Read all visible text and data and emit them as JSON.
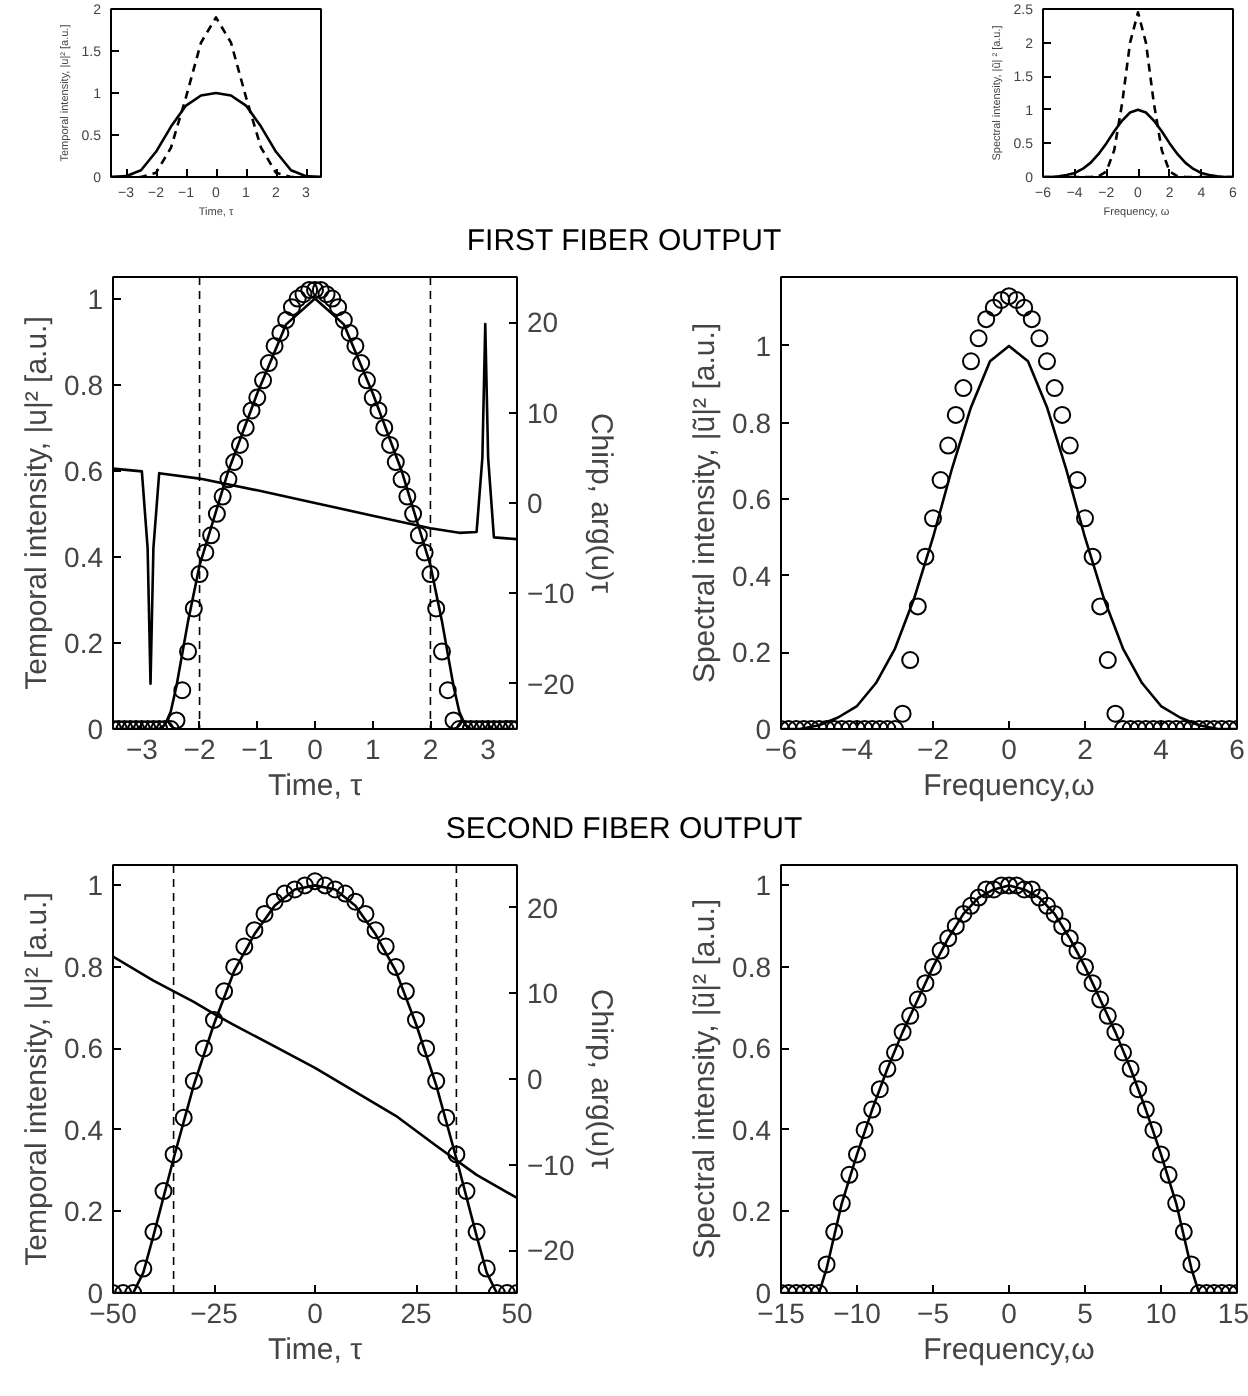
{
  "chart_data": [
    {
      "type": "line",
      "xlabel": "Time, τ",
      "ylabel": "Temporal intensity, |u|² [a.u.]",
      "xlim": [
        -3.5,
        3.5
      ],
      "xticks": [
        -3,
        -2,
        -1,
        0,
        1,
        2,
        3
      ],
      "ylim": [
        0,
        2
      ],
      "yticks": [
        0,
        0.5,
        1,
        1.5,
        2
      ],
      "grid": false,
      "series": [
        {
          "color": "#000000",
          "line_style": "solid",
          "x": [
            -3.5,
            -3,
            -2.5,
            -2,
            -1.5,
            -1,
            -0.5,
            0,
            0.5,
            1,
            1.5,
            2,
            2.5,
            3,
            3.5
          ],
          "values": [
            0,
            0.01,
            0.08,
            0.3,
            0.6,
            0.85,
            0.97,
            1,
            0.97,
            0.85,
            0.6,
            0.3,
            0.08,
            0.01,
            0
          ]
        },
        {
          "color": "#000000",
          "line_style": "dashed",
          "x": [
            -3.5,
            -2.5,
            -2,
            -1.5,
            -1,
            -0.5,
            0,
            0.5,
            1,
            1.5,
            2,
            2.5,
            3.5
          ],
          "values": [
            0,
            0,
            0.05,
            0.35,
            0.95,
            1.6,
            1.9,
            1.6,
            0.95,
            0.35,
            0.05,
            0,
            0
          ]
        }
      ]
    },
    {
      "type": "line",
      "xlabel": "Frequency,  ω",
      "ylabel": "Spectral intensity, |ũ| ² [a.u.]",
      "xlim": [
        -6,
        6
      ],
      "xticks": [
        -6,
        -4,
        -2,
        0,
        2,
        4,
        6
      ],
      "ylim": [
        0,
        2.5
      ],
      "yticks": [
        0,
        0.5,
        1,
        1.5,
        2,
        2.5
      ],
      "grid": false,
      "series": [
        {
          "color": "#000000",
          "line_style": "solid",
          "x": [
            -6,
            -5.5,
            -5,
            -4.5,
            -4,
            -3.5,
            -3,
            -2.5,
            -2,
            -1.5,
            -1,
            -0.5,
            0,
            0.5,
            1,
            1.5,
            2,
            2.5,
            3,
            3.5,
            4,
            4.5,
            5,
            5.5,
            6
          ],
          "values": [
            0,
            0,
            0.01,
            0.03,
            0.06,
            0.12,
            0.21,
            0.34,
            0.5,
            0.68,
            0.84,
            0.96,
            1,
            0.96,
            0.84,
            0.68,
            0.5,
            0.34,
            0.21,
            0.12,
            0.06,
            0.03,
            0.01,
            0,
            0
          ]
        },
        {
          "color": "#000000",
          "line_style": "dashed",
          "x": [
            -6,
            -3,
            -2.5,
            -2,
            -1.5,
            -1,
            -0.5,
            0,
            0.5,
            1,
            1.5,
            2,
            2.5,
            3,
            6
          ],
          "values": [
            0,
            0,
            0.01,
            0.08,
            0.4,
            1.1,
            2.0,
            2.45,
            2.0,
            1.1,
            0.4,
            0.08,
            0.01,
            0,
            0
          ]
        }
      ]
    },
    {
      "type": "line",
      "title": "FIRST FIBER OUTPUT",
      "xlabel": "Time, τ",
      "ylabel": "Temporal intensity, |u|² [a.u.]",
      "y2label": "Chirp, arg(u)τ",
      "xlim": [
        -3.5,
        3.5
      ],
      "xticks": [
        -3,
        -2,
        -1,
        0,
        1,
        2,
        3
      ],
      "ylim": [
        0,
        1.05
      ],
      "yticks": [
        0,
        0.2,
        0.4,
        0.6,
        0.8,
        1
      ],
      "y2lim": [
        -25,
        25
      ],
      "y2ticks": [
        -20,
        -10,
        0,
        10,
        20
      ],
      "grid": false,
      "ref_lines": [
        {
          "axis": "x",
          "value": -2,
          "color": "#000000",
          "line_style": "dashed"
        },
        {
          "axis": "x",
          "value": 2,
          "color": "#000000",
          "line_style": "dashed"
        }
      ],
      "series": [
        {
          "type": "scatter",
          "marker": "circle",
          "color": "#000000",
          "x": [
            -3.5,
            -3.4,
            -3.3,
            -3.2,
            -3.1,
            -3.0,
            -2.9,
            -2.8,
            -2.7,
            -2.6,
            -2.5,
            -2.4,
            -2.3,
            -2.2,
            -2.1,
            -2.0,
            -1.9,
            -1.8,
            -1.7,
            -1.6,
            -1.5,
            -1.4,
            -1.3,
            -1.2,
            -1.1,
            -1.0,
            -0.9,
            -0.8,
            -0.7,
            -0.6,
            -0.5,
            -0.4,
            -0.3,
            -0.2,
            -0.1,
            0,
            0.1,
            0.2,
            0.3,
            0.4,
            0.5,
            0.6,
            0.7,
            0.8,
            0.9,
            1.0,
            1.1,
            1.2,
            1.3,
            1.4,
            1.5,
            1.6,
            1.7,
            1.8,
            1.9,
            2.0,
            2.1,
            2.2,
            2.3,
            2.4,
            2.5,
            2.6,
            2.7,
            2.8,
            2.9,
            3.0,
            3.1,
            3.2,
            3.3,
            3.4,
            3.5
          ],
          "values": [
            0,
            0,
            0,
            0,
            0,
            0,
            0,
            0,
            0,
            0,
            0,
            0.02,
            0.09,
            0.18,
            0.28,
            0.36,
            0.41,
            0.45,
            0.5,
            0.54,
            0.58,
            0.62,
            0.66,
            0.7,
            0.74,
            0.77,
            0.81,
            0.85,
            0.89,
            0.92,
            0.95,
            0.98,
            1.0,
            1.01,
            1.02,
            1.02,
            1.02,
            1.01,
            1.0,
            0.98,
            0.95,
            0.92,
            0.89,
            0.85,
            0.81,
            0.77,
            0.74,
            0.7,
            0.66,
            0.62,
            0.58,
            0.54,
            0.5,
            0.45,
            0.41,
            0.36,
            0.28,
            0.18,
            0.09,
            0.02,
            0,
            0,
            0,
            0,
            0,
            0,
            0,
            0,
            0,
            0,
            0
          ]
        },
        {
          "color": "#000000",
          "line_style": "solid",
          "x": [
            -3.5,
            -2.7,
            -2.6,
            -2.5,
            -2.4,
            -2.2,
            -2,
            -1.5,
            -1,
            -0.5,
            0,
            0.5,
            1,
            1.5,
            2,
            2.2,
            2.4,
            2.5,
            2.6,
            2.7,
            3.5
          ],
          "values": [
            0,
            0,
            0.01,
            0.04,
            0.1,
            0.25,
            0.38,
            0.6,
            0.78,
            0.94,
            1,
            0.94,
            0.78,
            0.6,
            0.38,
            0.25,
            0.1,
            0.04,
            0.01,
            0,
            0
          ]
        },
        {
          "axis": "y2",
          "color": "#000000",
          "line_style": "solid",
          "x": [
            -3.5,
            -3.0,
            -2.9,
            -2.85,
            -2.8,
            -2.7,
            -2,
            -1,
            0,
            1,
            2,
            2.5,
            2.8,
            2.9,
            2.95,
            3.0,
            3.1,
            3.5
          ],
          "values": [
            3.8,
            3.5,
            -5,
            -20,
            -5,
            3.3,
            2.7,
            1.4,
            0,
            -1.4,
            -2.8,
            -3.3,
            -3.2,
            5,
            19.8,
            5,
            -3.8,
            -4
          ]
        }
      ]
    },
    {
      "type": "line",
      "xlabel": "Frequency,ω",
      "ylabel": "Spectral intensity, |ũ|² [a.u.]",
      "xlim": [
        -6,
        6
      ],
      "xticks": [
        -6,
        -4,
        -2,
        0,
        2,
        4,
        6
      ],
      "ylim": [
        0,
        1.18
      ],
      "yticks": [
        0,
        0.2,
        0.4,
        0.6,
        0.8,
        1
      ],
      "grid": false,
      "series": [
        {
          "type": "scatter",
          "marker": "circle",
          "color": "#000000",
          "x": [
            -6,
            -5.8,
            -5.6,
            -5.4,
            -5.2,
            -5,
            -4.8,
            -4.6,
            -4.4,
            -4.2,
            -4,
            -3.8,
            -3.6,
            -3.4,
            -3.2,
            -3,
            -2.8,
            -2.6,
            -2.4,
            -2.2,
            -2,
            -1.8,
            -1.6,
            -1.4,
            -1.2,
            -1,
            -0.8,
            -0.6,
            -0.4,
            -0.2,
            0,
            0.2,
            0.4,
            0.6,
            0.8,
            1,
            1.2,
            1.4,
            1.6,
            1.8,
            2,
            2.2,
            2.4,
            2.6,
            2.8,
            3,
            3.2,
            3.4,
            3.6,
            3.8,
            4,
            4.2,
            4.4,
            4.6,
            4.8,
            5,
            5.2,
            5.4,
            5.6,
            5.8,
            6
          ],
          "values": [
            0,
            0,
            0,
            0,
            0,
            0,
            0,
            0,
            0,
            0,
            0,
            0,
            0,
            0,
            0,
            0,
            0.04,
            0.18,
            0.32,
            0.45,
            0.55,
            0.65,
            0.74,
            0.82,
            0.89,
            0.96,
            1.02,
            1.07,
            1.1,
            1.12,
            1.13,
            1.12,
            1.1,
            1.07,
            1.02,
            0.96,
            0.89,
            0.82,
            0.74,
            0.65,
            0.55,
            0.45,
            0.32,
            0.18,
            0.04,
            0,
            0,
            0,
            0,
            0,
            0,
            0,
            0,
            0,
            0,
            0,
            0,
            0,
            0,
            0,
            0
          ]
        },
        {
          "color": "#000000",
          "line_style": "solid",
          "x": [
            -6,
            -5.5,
            -5,
            -4.5,
            -4,
            -3.5,
            -3,
            -2.5,
            -2,
            -1.5,
            -1,
            -0.5,
            0,
            0.5,
            1,
            1.5,
            2,
            2.5,
            3,
            3.5,
            4,
            4.5,
            5,
            5.5,
            6
          ],
          "values": [
            0,
            0,
            0.01,
            0.03,
            0.06,
            0.12,
            0.21,
            0.34,
            0.5,
            0.68,
            0.84,
            0.96,
            1,
            0.96,
            0.84,
            0.68,
            0.5,
            0.34,
            0.21,
            0.12,
            0.06,
            0.03,
            0.01,
            0,
            0
          ]
        }
      ]
    },
    {
      "type": "line",
      "title": "SECOND FIBER OUTPUT",
      "xlabel": "Time, τ",
      "ylabel": "Temporal intensity, |u|² [a.u.]",
      "y2label": "Chirp, arg(u)τ",
      "xlim": [
        -50,
        50
      ],
      "xticks": [
        -50,
        -25,
        0,
        25,
        50
      ],
      "ylim": [
        0,
        1.05
      ],
      "yticks": [
        0,
        0.2,
        0.4,
        0.6,
        0.8,
        1
      ],
      "y2lim": [
        -25,
        25
      ],
      "y2ticks": [
        -20,
        -10,
        0,
        10,
        20
      ],
      "grid": false,
      "ref_lines": [
        {
          "axis": "x",
          "value": -35,
          "color": "#000000",
          "line_style": "dashed"
        },
        {
          "axis": "x",
          "value": 35,
          "color": "#000000",
          "line_style": "dashed"
        }
      ],
      "series": [
        {
          "type": "scatter",
          "marker": "circle",
          "color": "#000000",
          "x": [
            -50,
            -47.5,
            -45,
            -42.5,
            -40,
            -37.5,
            -35,
            -32.5,
            -30,
            -27.5,
            -25,
            -22.5,
            -20,
            -17.5,
            -15,
            -12.5,
            -10,
            -7.5,
            -5,
            -2.5,
            0,
            2.5,
            5,
            7.5,
            10,
            12.5,
            15,
            17.5,
            20,
            22.5,
            25,
            27.5,
            30,
            32.5,
            35,
            37.5,
            40,
            42.5,
            45,
            47.5,
            50
          ],
          "values": [
            0,
            0,
            0,
            0.06,
            0.15,
            0.25,
            0.34,
            0.43,
            0.52,
            0.6,
            0.67,
            0.74,
            0.8,
            0.85,
            0.89,
            0.93,
            0.96,
            0.98,
            0.99,
            1.0,
            1.01,
            1.0,
            0.99,
            0.98,
            0.96,
            0.93,
            0.89,
            0.85,
            0.8,
            0.74,
            0.67,
            0.6,
            0.52,
            0.43,
            0.34,
            0.25,
            0.15,
            0.06,
            0,
            0,
            0
          ]
        },
        {
          "color": "#000000",
          "line_style": "solid",
          "x": [
            -50,
            -45,
            -42.5,
            -40,
            -35,
            -30,
            -25,
            -20,
            -15,
            -10,
            -5,
            0,
            5,
            10,
            15,
            20,
            25,
            30,
            35,
            40,
            42.5,
            45,
            50
          ],
          "values": [
            0,
            0,
            0.05,
            0.14,
            0.33,
            0.51,
            0.66,
            0.79,
            0.88,
            0.95,
            0.99,
            1.0,
            0.99,
            0.95,
            0.88,
            0.79,
            0.66,
            0.51,
            0.33,
            0.14,
            0.05,
            0,
            0
          ]
        },
        {
          "axis": "y2",
          "color": "#000000",
          "line_style": "solid",
          "x": [
            -50,
            -40,
            -30,
            -25,
            -20,
            -10,
            0,
            10,
            20,
            30,
            40,
            50
          ],
          "values": [
            14.3,
            11.5,
            9,
            7.6,
            6.3,
            3.8,
            1.3,
            -1.5,
            -4.3,
            -7.8,
            -11.2,
            -13.9
          ]
        }
      ]
    },
    {
      "type": "line",
      "xlabel": "Frequency,ω",
      "ylabel": "Spectral intensity, |ũ|² [a.u.]",
      "xlim": [
        -15,
        15
      ],
      "xticks": [
        -15,
        -10,
        -5,
        0,
        5,
        10,
        15
      ],
      "ylim": [
        0,
        1.05
      ],
      "yticks": [
        0,
        0.2,
        0.4,
        0.6,
        0.8,
        1
      ],
      "grid": false,
      "series": [
        {
          "type": "scatter",
          "marker": "circle",
          "color": "#000000",
          "x": [
            -15,
            -14.5,
            -14,
            -13.5,
            -13,
            -12.5,
            -12,
            -11.5,
            -11,
            -10.5,
            -10,
            -9.5,
            -9,
            -8.5,
            -8,
            -7.5,
            -7,
            -6.5,
            -6,
            -5.5,
            -5,
            -4.5,
            -4,
            -3.5,
            -3,
            -2.5,
            -2,
            -1.5,
            -1,
            -0.5,
            0,
            0.5,
            1,
            1.5,
            2,
            2.5,
            3,
            3.5,
            4,
            4.5,
            5,
            5.5,
            6,
            6.5,
            7,
            7.5,
            8,
            8.5,
            9,
            9.5,
            10,
            10.5,
            11,
            11.5,
            12,
            12.5,
            13,
            13.5,
            14,
            14.5,
            15
          ],
          "values": [
            0,
            0,
            0,
            0,
            0,
            0,
            0.07,
            0.15,
            0.22,
            0.29,
            0.34,
            0.4,
            0.45,
            0.5,
            0.55,
            0.59,
            0.64,
            0.68,
            0.72,
            0.76,
            0.8,
            0.84,
            0.87,
            0.9,
            0.93,
            0.95,
            0.97,
            0.99,
            0.99,
            1.0,
            1.0,
            1.0,
            0.99,
            0.99,
            0.97,
            0.95,
            0.93,
            0.9,
            0.87,
            0.84,
            0.8,
            0.76,
            0.72,
            0.68,
            0.64,
            0.59,
            0.55,
            0.5,
            0.45,
            0.4,
            0.34,
            0.29,
            0.22,
            0.15,
            0.07,
            0,
            0,
            0,
            0,
            0,
            0
          ]
        },
        {
          "color": "#000000",
          "line_style": "solid",
          "x": [
            -15,
            -12.5,
            -12,
            -11,
            -10,
            -9,
            -8,
            -7,
            -6,
            -5,
            -4,
            -3,
            -2,
            -1,
            0,
            1,
            2,
            3,
            4,
            5,
            6,
            7,
            8,
            9,
            10,
            11,
            12,
            12.5,
            15
          ],
          "values": [
            0,
            0,
            0.06,
            0.22,
            0.34,
            0.45,
            0.55,
            0.64,
            0.72,
            0.8,
            0.87,
            0.93,
            0.97,
            0.99,
            1.0,
            0.99,
            0.97,
            0.93,
            0.87,
            0.8,
            0.72,
            0.64,
            0.55,
            0.45,
            0.34,
            0.22,
            0.06,
            0,
            0
          ]
        }
      ]
    }
  ]
}
